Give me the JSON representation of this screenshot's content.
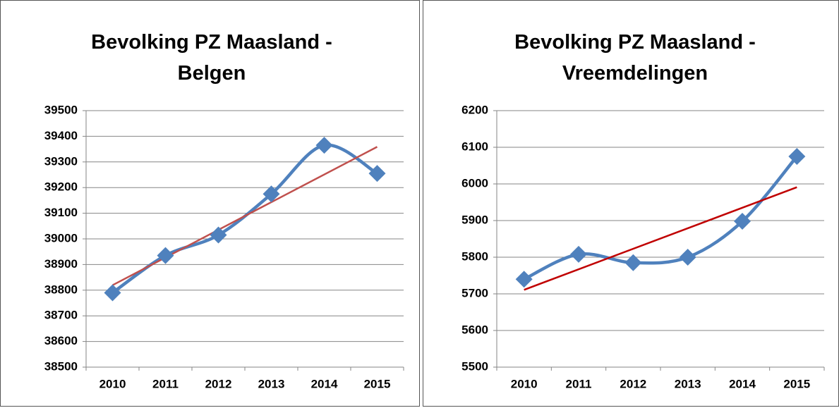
{
  "chart_data": [
    {
      "type": "line",
      "title": "Bevolking PZ Maasland - Belgen",
      "categories": [
        "2010",
        "2011",
        "2012",
        "2013",
        "2014",
        "2015"
      ],
      "series": [
        {
          "color": "#4f81bd",
          "values": [
            38790,
            38935,
            39015,
            39175,
            39365,
            39255
          ]
        }
      ],
      "trendline": {
        "kind": "linear",
        "color": "#c0504d"
      },
      "ylim": [
        38500,
        39500
      ],
      "yticks": [
        38500,
        38600,
        38700,
        38800,
        38900,
        39000,
        39100,
        39200,
        39300,
        39400,
        39500
      ],
      "grid": true,
      "smooth": true
    },
    {
      "type": "line",
      "title": "Bevolking PZ Maasland - Vreemdelingen",
      "categories": [
        "2010",
        "2011",
        "2012",
        "2013",
        "2014",
        "2015"
      ],
      "series": [
        {
          "color": "#4f81bd",
          "values": [
            5740,
            5808,
            5785,
            5800,
            5898,
            6075
          ]
        }
      ],
      "trendline": {
        "kind": "linear",
        "color": "#c00000"
      },
      "ylim": [
        5500,
        6200
      ],
      "yticks": [
        5500,
        5600,
        5700,
        5800,
        5900,
        6000,
        6100,
        6200
      ],
      "grid": true,
      "smooth": true
    }
  ]
}
